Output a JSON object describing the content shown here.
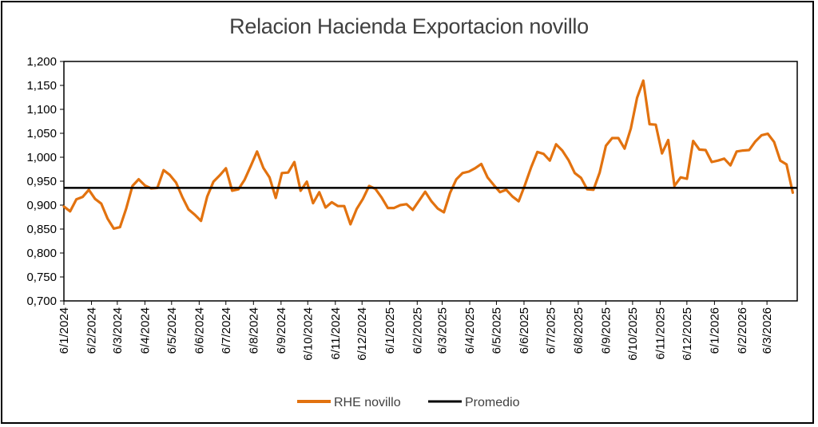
{
  "chart_data": {
    "type": "line",
    "title": "Relacion  Hacienda Exportacion novillo",
    "xlabel": "",
    "ylabel": "",
    "ylim": [
      0.7,
      1.2
    ],
    "y_ticks": [
      "1,200",
      "1,150",
      "1,100",
      "1,050",
      "1,000",
      "0,950",
      "0,900",
      "0,850",
      "0,800",
      "0,750",
      "0,700"
    ],
    "y_tick_values": [
      1.2,
      1.15,
      1.1,
      1.05,
      1.0,
      0.95,
      0.9,
      0.85,
      0.8,
      0.75,
      0.7
    ],
    "x_tick_labels": [
      "6/1/2024",
      "6/2/2024",
      "6/3/2024",
      "6/4/2024",
      "6/5/2024",
      "6/6/2024",
      "6/7/2024",
      "6/8/2024",
      "6/9/2024",
      "6/10/2024",
      "6/11/2024",
      "6/12/2024",
      "6/1/2025",
      "6/2/2025",
      "6/3/2025",
      "6/4/2025",
      "6/5/2025",
      "6/6/2025",
      "6/7/2025",
      "6/8/2025",
      "6/9/2025",
      "6/10/2025",
      "6/11/2025",
      "6/12/2025",
      "6/1/2026",
      "6/2/2026",
      "6/3/2026"
    ],
    "x_range": [
      "6/1/2024",
      "9/4/2026"
    ],
    "legend_position": "bottom",
    "grid": false,
    "series": [
      {
        "name": "RHE novillo",
        "color": "#E2720F",
        "points": [
          [
            "6/1/2024",
            0.897
          ],
          [
            "13/1/2024",
            0.887
          ],
          [
            "20/1/2024",
            0.912
          ],
          [
            "27/1/2024",
            0.917
          ],
          [
            "3/2/2024",
            0.932
          ],
          [
            "10/2/2024",
            0.913
          ],
          [
            "17/2/2024",
            0.903
          ],
          [
            "24/2/2024",
            0.872
          ],
          [
            "2/3/2024",
            0.851
          ],
          [
            "9/3/2024",
            0.854
          ],
          [
            "16/3/2024",
            0.893
          ],
          [
            "23/3/2024",
            0.94
          ],
          [
            "30/3/2024",
            0.954
          ],
          [
            "6/4/2024",
            0.941
          ],
          [
            "13/4/2024",
            0.935
          ],
          [
            "20/4/2024",
            0.936
          ],
          [
            "27/4/2024",
            0.973
          ],
          [
            "4/5/2024",
            0.963
          ],
          [
            "11/5/2024",
            0.947
          ],
          [
            "18/5/2024",
            0.917
          ],
          [
            "25/5/2024",
            0.891
          ],
          [
            "1/6/2024",
            0.88
          ],
          [
            "8/6/2024",
            0.867
          ],
          [
            "15/6/2024",
            0.918
          ],
          [
            "22/6/2024",
            0.949
          ],
          [
            "29/6/2024",
            0.962
          ],
          [
            "6/7/2024",
            0.977
          ],
          [
            "13/7/2024",
            0.93
          ],
          [
            "20/7/2024",
            0.933
          ],
          [
            "27/7/2024",
            0.953
          ],
          [
            "3/8/2024",
            0.982
          ],
          [
            "10/8/2024",
            1.012
          ],
          [
            "17/8/2024",
            0.978
          ],
          [
            "24/8/2024",
            0.958
          ],
          [
            "31/8/2024",
            0.915
          ],
          [
            "7/9/2024",
            0.967
          ],
          [
            "14/9/2024",
            0.968
          ],
          [
            "21/9/2024",
            0.99
          ],
          [
            "28/9/2024",
            0.93
          ],
          [
            "5/10/2024",
            0.949
          ],
          [
            "12/10/2024",
            0.904
          ],
          [
            "19/10/2024",
            0.927
          ],
          [
            "26/10/2024",
            0.895
          ],
          [
            "2/11/2024",
            0.906
          ],
          [
            "9/11/2024",
            0.898
          ],
          [
            "16/11/2024",
            0.898
          ],
          [
            "23/11/2024",
            0.86
          ],
          [
            "30/11/2024",
            0.892
          ],
          [
            "7/12/2024",
            0.913
          ],
          [
            "14/12/2024",
            0.94
          ],
          [
            "21/12/2024",
            0.934
          ],
          [
            "28/12/2024",
            0.916
          ],
          [
            "4/1/2025",
            0.894
          ],
          [
            "11/1/2025",
            0.894
          ],
          [
            "18/1/2025",
            0.9
          ],
          [
            "25/1/2025",
            0.902
          ],
          [
            "1/2/2025",
            0.89
          ],
          [
            "8/2/2025",
            0.909
          ],
          [
            "15/2/2025",
            0.928
          ],
          [
            "22/2/2025",
            0.908
          ],
          [
            "1/3/2025",
            0.893
          ],
          [
            "8/3/2025",
            0.885
          ],
          [
            "15/3/2025",
            0.926
          ],
          [
            "22/3/2025",
            0.954
          ],
          [
            "29/3/2025",
            0.967
          ],
          [
            "5/4/2025",
            0.97
          ],
          [
            "12/4/2025",
            0.977
          ],
          [
            "19/4/2025",
            0.986
          ],
          [
            "26/4/2025",
            0.958
          ],
          [
            "3/5/2025",
            0.942
          ],
          [
            "10/5/2025",
            0.927
          ],
          [
            "17/5/2025",
            0.932
          ],
          [
            "24/5/2025",
            0.918
          ],
          [
            "31/5/2025",
            0.908
          ],
          [
            "7/6/2025",
            0.942
          ],
          [
            "14/6/2025",
            0.979
          ],
          [
            "21/6/2025",
            1.011
          ],
          [
            "28/6/2025",
            1.007
          ],
          [
            "5/7/2025",
            0.993
          ],
          [
            "12/7/2025",
            1.027
          ],
          [
            "19/7/2025",
            1.014
          ],
          [
            "26/7/2025",
            0.994
          ],
          [
            "2/8/2025",
            0.967
          ],
          [
            "9/8/2025",
            0.957
          ],
          [
            "16/8/2025",
            0.933
          ],
          [
            "23/8/2025",
            0.932
          ],
          [
            "30/8/2025",
            0.968
          ],
          [
            "6/9/2025",
            1.024
          ],
          [
            "13/9/2025",
            1.04
          ],
          [
            "20/9/2025",
            1.04
          ],
          [
            "27/9/2025",
            1.018
          ],
          [
            "4/10/2025",
            1.06
          ],
          [
            "11/10/2025",
            1.124
          ],
          [
            "18/10/2025",
            1.16
          ],
          [
            "25/10/2025",
            1.069
          ],
          [
            "1/11/2025",
            1.068
          ],
          [
            "8/11/2025",
            1.008
          ],
          [
            "15/11/2025",
            1.036
          ],
          [
            "22/11/2025",
            0.94
          ],
          [
            "29/11/2025",
            0.958
          ],
          [
            "6/12/2025",
            0.955
          ],
          [
            "13/12/2025",
            1.034
          ],
          [
            "20/12/2025",
            1.016
          ],
          [
            "27/12/2025",
            1.015
          ],
          [
            "3/1/2026",
            0.99
          ],
          [
            "10/1/2026",
            0.993
          ],
          [
            "17/1/2026",
            0.997
          ],
          [
            "24/1/2026",
            0.983
          ],
          [
            "31/1/2026",
            1.012
          ],
          [
            "7/2/2026",
            1.014
          ],
          [
            "14/2/2026",
            1.015
          ],
          [
            "21/2/2026",
            1.033
          ],
          [
            "28/2/2026",
            1.046
          ],
          [
            "7/3/2026",
            1.049
          ],
          [
            "14/3/2026",
            1.032
          ],
          [
            "21/3/2026",
            0.993
          ],
          [
            "28/3/2026",
            0.985
          ],
          [
            "4/4/2026",
            0.926
          ]
        ]
      },
      {
        "name": "Promedio",
        "color": "#000000",
        "value": 0.936
      }
    ]
  }
}
